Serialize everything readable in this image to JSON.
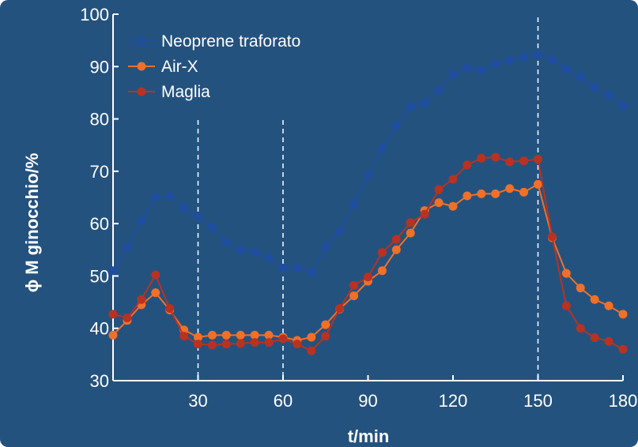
{
  "chart_data": {
    "type": "line",
    "title": "",
    "xlabel": "t/min",
    "ylabel": "ϕ M ginocchio/%",
    "xlim": [
      0,
      180
    ],
    "ylim": [
      30,
      100
    ],
    "xticks": [
      30,
      60,
      90,
      120,
      150,
      180
    ],
    "yticks": [
      30,
      40,
      50,
      60,
      70,
      80,
      90,
      100
    ],
    "vlines": [
      30,
      60,
      150
    ],
    "legend_position": "top-left",
    "grid": false,
    "colors": {
      "background": "#24527f",
      "axis": "#ffffff"
    },
    "series": [
      {
        "name": "Neoprene traforato",
        "color": "#1f4ea0",
        "x": [
          0,
          5,
          10,
          15,
          20,
          25,
          30,
          35,
          40,
          45,
          50,
          55,
          60,
          65,
          70,
          75,
          80,
          85,
          90,
          95,
          100,
          105,
          110,
          115,
          120,
          125,
          130,
          135,
          140,
          145,
          150,
          155,
          160,
          165,
          170,
          175,
          180
        ],
        "y": [
          51,
          55.5,
          60.5,
          65,
          65.2,
          63,
          61.3,
          59.3,
          56.5,
          55,
          54.5,
          53.5,
          51.5,
          51.5,
          50.7,
          55.5,
          58.5,
          63.7,
          69.2,
          74.3,
          78.7,
          82.2,
          83,
          85.5,
          88.5,
          89.7,
          89.3,
          90.5,
          91.2,
          91.8,
          92.3,
          91.3,
          89.5,
          88,
          86,
          84.5,
          82.5
        ]
      },
      {
        "name": "Air-X",
        "color": "#f07028",
        "x": [
          0,
          5,
          10,
          15,
          20,
          25,
          30,
          35,
          40,
          45,
          50,
          55,
          60,
          65,
          70,
          75,
          80,
          85,
          90,
          95,
          100,
          105,
          110,
          115,
          120,
          125,
          130,
          135,
          140,
          145,
          150,
          155,
          160,
          165,
          170,
          175,
          180
        ],
        "y": [
          38.7,
          41.5,
          44.5,
          46.8,
          43.5,
          39.7,
          38.3,
          38.7,
          38.7,
          38.7,
          38.7,
          38.7,
          38.3,
          37.7,
          38.3,
          40.7,
          43.7,
          46.2,
          49,
          51,
          55,
          58.2,
          62.5,
          64,
          63.3,
          65.3,
          65.7,
          65.7,
          66.7,
          66,
          67.5,
          57.3,
          50.5,
          47.7,
          45.5,
          44.3,
          42.7
        ]
      },
      {
        "name": "Maglia",
        "color": "#b83222",
        "x": [
          0,
          5,
          10,
          15,
          20,
          25,
          30,
          35,
          40,
          45,
          50,
          55,
          60,
          65,
          70,
          75,
          80,
          85,
          90,
          95,
          100,
          105,
          110,
          115,
          120,
          125,
          130,
          135,
          140,
          145,
          150,
          155,
          160,
          165,
          170,
          175,
          180
        ],
        "y": [
          42.7,
          42,
          45.5,
          50.2,
          43.8,
          38.5,
          37,
          36.8,
          37,
          37.1,
          37.3,
          37.3,
          38,
          37,
          35.7,
          38.5,
          43.8,
          48.2,
          49.8,
          54.5,
          57,
          60.2,
          61.8,
          66.5,
          68.5,
          71.2,
          72.5,
          72.7,
          71.8,
          72,
          72.3,
          57.5,
          44.3,
          40,
          38.2,
          37.5,
          36
        ]
      }
    ]
  }
}
